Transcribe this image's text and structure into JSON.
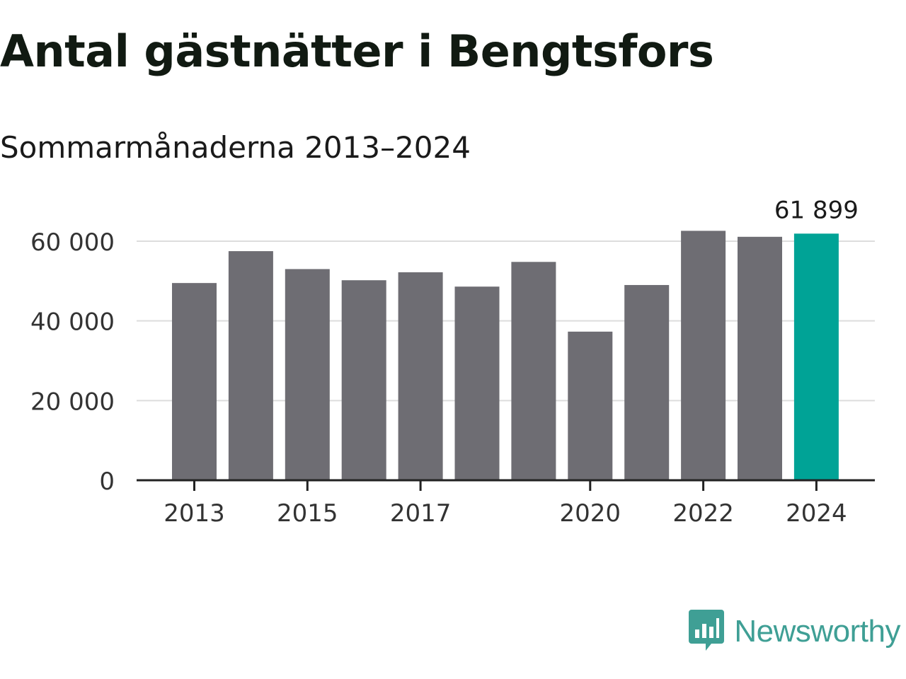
{
  "chart_data": {
    "type": "bar",
    "title": "Antal gästnätter i Bengtsfors",
    "subtitle": "Sommarmånaderna 2013–2024",
    "categories": [
      "2013",
      "2014",
      "2015",
      "2016",
      "2017",
      "2018",
      "2019",
      "2020",
      "2021",
      "2022",
      "2023",
      "2024"
    ],
    "values": [
      49500,
      57500,
      53000,
      50200,
      52200,
      48600,
      54800,
      37300,
      49000,
      62600,
      61100,
      61899
    ],
    "ylim": [
      0,
      65000
    ],
    "yticks": [
      0,
      20000,
      40000,
      60000
    ],
    "ytick_labels": [
      "0",
      "20 000",
      "40 000",
      "60 000"
    ],
    "xtick_labels": [
      "2013",
      "2015",
      "2017",
      "2020",
      "2022",
      "2024"
    ],
    "highlight_category": "2024",
    "data_label": "61 899",
    "grid": true,
    "bar_color": "#6e6d73",
    "highlight_color": "#00a396",
    "grid_color": "#dddddd"
  },
  "brand": {
    "name": "Newsworthy",
    "icon": "newsworthy-logo-icon",
    "color": "#3f9f95"
  }
}
